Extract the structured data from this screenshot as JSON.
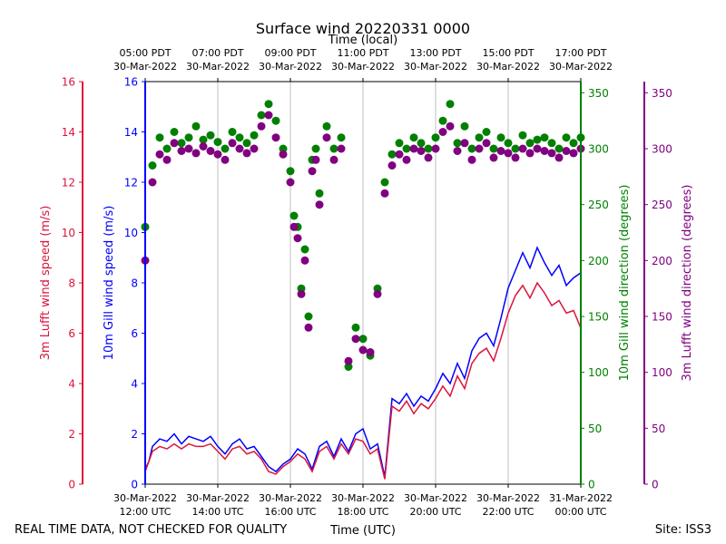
{
  "chart_data": {
    "type": "line",
    "title": "Surface wind 20220331 0000",
    "top_axis_label": "Time (local)",
    "xlabel": "Time (UTC)",
    "footer_left": "REAL TIME DATA, NOT CHECKED FOR QUALITY",
    "footer_right": "Site: ISS3",
    "x_range_hours_utc": [
      12,
      24
    ],
    "bottom_ticks": [
      {
        "hour": 12,
        "line1": "30-Mar-2022",
        "line2": "12:00 UTC"
      },
      {
        "hour": 14,
        "line1": "30-Mar-2022",
        "line2": "14:00 UTC"
      },
      {
        "hour": 16,
        "line1": "30-Mar-2022",
        "line2": "16:00 UTC"
      },
      {
        "hour": 18,
        "line1": "30-Mar-2022",
        "line2": "18:00 UTC"
      },
      {
        "hour": 20,
        "line1": "30-Mar-2022",
        "line2": "20:00 UTC"
      },
      {
        "hour": 22,
        "line1": "30-Mar-2022",
        "line2": "22:00 UTC"
      },
      {
        "hour": 24,
        "line1": "31-Mar-2022",
        "line2": "00:00 UTC"
      }
    ],
    "top_ticks": [
      {
        "hour": 12,
        "line1": "05:00 PDT",
        "line2": "30-Mar-2022"
      },
      {
        "hour": 14,
        "line1": "07:00 PDT",
        "line2": "30-Mar-2022"
      },
      {
        "hour": 16,
        "line1": "09:00 PDT",
        "line2": "30-Mar-2022"
      },
      {
        "hour": 18,
        "line1": "11:00 PDT",
        "line2": "30-Mar-2022"
      },
      {
        "hour": 20,
        "line1": "13:00 PDT",
        "line2": "30-Mar-2022"
      },
      {
        "hour": 22,
        "line1": "15:00 PDT",
        "line2": "30-Mar-2022"
      },
      {
        "hour": 24,
        "line1": "17:00 PDT",
        "line2": "30-Mar-2022"
      }
    ],
    "axes": {
      "lufft_speed": {
        "label": "3m Lufft wind speed (m/s)",
        "range": [
          0,
          16
        ],
        "ticks": [
          0,
          2,
          4,
          6,
          8,
          10,
          12,
          14,
          16
        ],
        "color": "#dc143c"
      },
      "gill_speed": {
        "label": "10m Gill wind speed (m/s)",
        "range": [
          0,
          16
        ],
        "ticks": [
          0,
          2,
          4,
          6,
          8,
          10,
          12,
          14,
          16
        ],
        "color": "#0000ff"
      },
      "gill_dir": {
        "label": "10m Gill wind direction (degrees)",
        "range": [
          0,
          360
        ],
        "ticks": [
          0,
          50,
          100,
          150,
          200,
          250,
          300,
          350
        ],
        "color": "#008000"
      },
      "lufft_dir": {
        "label": "3m Lufft wind direction (degrees)",
        "range": [
          0,
          360
        ],
        "ticks": [
          0,
          50,
          100,
          150,
          200,
          250,
          300,
          350
        ],
        "color": "#800080"
      }
    },
    "series": [
      {
        "name": "10m Gill wind speed",
        "kind": "line",
        "axis": "gill_speed",
        "color": "#0000ff",
        "x": [
          12.0,
          12.1,
          12.2,
          12.4,
          12.6,
          12.8,
          13.0,
          13.2,
          13.4,
          13.6,
          13.8,
          14.0,
          14.2,
          14.4,
          14.6,
          14.8,
          15.0,
          15.2,
          15.4,
          15.6,
          15.8,
          16.0,
          16.2,
          16.4,
          16.6,
          16.8,
          17.0,
          17.2,
          17.4,
          17.6,
          17.8,
          18.0,
          18.2,
          18.4,
          18.6,
          18.8,
          19.0,
          19.2,
          19.4,
          19.6,
          19.8,
          20.0,
          20.2,
          20.4,
          20.6,
          20.8,
          21.0,
          21.2,
          21.4,
          21.6,
          21.8,
          22.0,
          22.2,
          22.4,
          22.6,
          22.8,
          23.0,
          23.2,
          23.4,
          23.6,
          23.8,
          24.0
        ],
        "values": [
          0.6,
          0.9,
          1.5,
          1.8,
          1.7,
          2.0,
          1.6,
          1.9,
          1.8,
          1.7,
          1.9,
          1.5,
          1.2,
          1.6,
          1.8,
          1.4,
          1.5,
          1.1,
          0.7,
          0.5,
          0.8,
          1.0,
          1.4,
          1.2,
          0.6,
          1.5,
          1.7,
          1.1,
          1.8,
          1.3,
          2.0,
          2.2,
          1.4,
          1.6,
          0.3,
          3.4,
          3.2,
          3.6,
          3.1,
          3.5,
          3.3,
          3.8,
          4.4,
          4.0,
          4.8,
          4.2,
          5.3,
          5.8,
          6.0,
          5.5,
          6.6,
          7.8,
          8.5,
          9.2,
          8.6,
          9.4,
          8.8,
          8.3,
          8.7,
          7.9,
          8.2,
          8.4
        ]
      },
      {
        "name": "3m Lufft wind speed",
        "kind": "line",
        "axis": "lufft_speed",
        "color": "#dc143c",
        "x": [
          12.0,
          12.1,
          12.2,
          12.4,
          12.6,
          12.8,
          13.0,
          13.2,
          13.4,
          13.6,
          13.8,
          14.0,
          14.2,
          14.4,
          14.6,
          14.8,
          15.0,
          15.2,
          15.4,
          15.6,
          15.8,
          16.0,
          16.2,
          16.4,
          16.6,
          16.8,
          17.0,
          17.2,
          17.4,
          17.6,
          17.8,
          18.0,
          18.2,
          18.4,
          18.6,
          18.8,
          19.0,
          19.2,
          19.4,
          19.6,
          19.8,
          20.0,
          20.2,
          20.4,
          20.6,
          20.8,
          21.0,
          21.2,
          21.4,
          21.6,
          21.8,
          22.0,
          22.2,
          22.4,
          22.6,
          22.8,
          23.0,
          23.2,
          23.4,
          23.6,
          23.8,
          24.0
        ],
        "values": [
          0.5,
          0.9,
          1.3,
          1.5,
          1.4,
          1.6,
          1.4,
          1.6,
          1.5,
          1.5,
          1.6,
          1.3,
          1.0,
          1.4,
          1.5,
          1.2,
          1.3,
          1.0,
          0.5,
          0.4,
          0.7,
          0.9,
          1.2,
          1.0,
          0.5,
          1.3,
          1.5,
          1.0,
          1.6,
          1.2,
          1.8,
          1.7,
          1.2,
          1.4,
          0.2,
          3.1,
          2.9,
          3.3,
          2.8,
          3.2,
          3.0,
          3.4,
          3.9,
          3.5,
          4.3,
          3.8,
          4.8,
          5.2,
          5.4,
          4.9,
          5.8,
          6.8,
          7.5,
          7.9,
          7.4,
          8.0,
          7.6,
          7.1,
          7.3,
          6.8,
          6.9,
          6.2
        ]
      },
      {
        "name": "10m Gill wind direction",
        "kind": "scatter",
        "axis": "gill_dir",
        "color": "#008000",
        "x": [
          12.0,
          12.2,
          12.4,
          12.6,
          12.8,
          13.0,
          13.2,
          13.4,
          13.6,
          13.8,
          14.0,
          14.2,
          14.4,
          14.6,
          14.8,
          15.0,
          15.2,
          15.4,
          15.6,
          15.8,
          16.0,
          16.1,
          16.2,
          16.3,
          16.4,
          16.5,
          16.6,
          16.7,
          16.8,
          17.0,
          17.2,
          17.4,
          17.6,
          17.8,
          18.0,
          18.2,
          18.4,
          18.6,
          18.8,
          19.0,
          19.2,
          19.4,
          19.6,
          19.8,
          20.0,
          20.2,
          20.4,
          20.6,
          20.8,
          21.0,
          21.2,
          21.4,
          21.6,
          21.8,
          22.0,
          22.2,
          22.4,
          22.6,
          22.8,
          23.0,
          23.2,
          23.4,
          23.6,
          23.8,
          24.0
        ],
        "values": [
          230,
          285,
          310,
          300,
          315,
          305,
          310,
          320,
          308,
          312,
          306,
          300,
          315,
          310,
          305,
          312,
          330,
          340,
          325,
          300,
          280,
          240,
          230,
          175,
          210,
          150,
          290,
          300,
          260,
          320,
          300,
          310,
          105,
          140,
          130,
          115,
          175,
          270,
          295,
          305,
          300,
          310,
          305,
          300,
          310,
          325,
          340,
          305,
          320,
          300,
          310,
          315,
          300,
          310,
          305,
          300,
          312,
          305,
          308,
          310,
          305,
          300,
          310,
          305,
          310
        ]
      },
      {
        "name": "3m Lufft wind direction",
        "kind": "scatter",
        "axis": "lufft_dir",
        "color": "#800080",
        "x": [
          12.0,
          12.2,
          12.4,
          12.6,
          12.8,
          13.0,
          13.2,
          13.4,
          13.6,
          13.8,
          14.0,
          14.2,
          14.4,
          14.6,
          14.8,
          15.0,
          15.2,
          15.4,
          15.6,
          15.8,
          16.0,
          16.1,
          16.2,
          16.3,
          16.4,
          16.5,
          16.6,
          16.7,
          16.8,
          17.0,
          17.2,
          17.4,
          17.6,
          17.8,
          18.0,
          18.2,
          18.4,
          18.6,
          18.8,
          19.0,
          19.2,
          19.4,
          19.6,
          19.8,
          20.0,
          20.2,
          20.4,
          20.6,
          20.8,
          21.0,
          21.2,
          21.4,
          21.6,
          21.8,
          22.0,
          22.2,
          22.4,
          22.6,
          22.8,
          23.0,
          23.2,
          23.4,
          23.6,
          23.8,
          24.0
        ],
        "values": [
          200,
          270,
          295,
          290,
          305,
          298,
          300,
          296,
          302,
          298,
          295,
          290,
          305,
          300,
          296,
          300,
          320,
          330,
          310,
          295,
          270,
          230,
          220,
          170,
          200,
          140,
          280,
          290,
          250,
          310,
          290,
          300,
          110,
          130,
          120,
          118,
          170,
          260,
          285,
          295,
          290,
          300,
          298,
          292,
          300,
          315,
          320,
          298,
          305,
          290,
          300,
          305,
          292,
          298,
          296,
          292,
          300,
          296,
          300,
          298,
          296,
          292,
          298,
          296,
          300
        ]
      }
    ]
  }
}
